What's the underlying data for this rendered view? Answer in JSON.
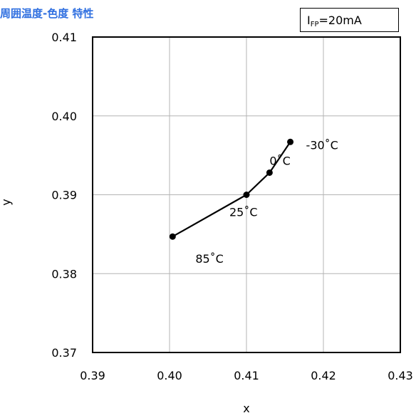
{
  "title": "周囲温度-色度 特性",
  "condition": {
    "prefix": "I",
    "sub": "FP",
    "value": "=20mA"
  },
  "chart_data": {
    "type": "line",
    "xlabel": "x",
    "ylabel": "y",
    "xlim": [
      0.39,
      0.43
    ],
    "ylim": [
      0.37,
      0.41
    ],
    "x_ticks": [
      "0.39",
      "0.40",
      "0.41",
      "0.42",
      "0.43"
    ],
    "y_ticks": [
      "0.41",
      "0.40",
      "0.39",
      "0.38",
      "0.37"
    ],
    "grid": true,
    "series": [
      {
        "points": [
          {
            "x": 0.4004,
            "y": 0.3847,
            "label": "85˚C"
          },
          {
            "x": 0.41,
            "y": 0.39,
            "label": "25˚C"
          },
          {
            "x": 0.413,
            "y": 0.3928,
            "label": "0˚C"
          },
          {
            "x": 0.4157,
            "y": 0.3967,
            "label": "-30˚C"
          }
        ]
      }
    ]
  }
}
